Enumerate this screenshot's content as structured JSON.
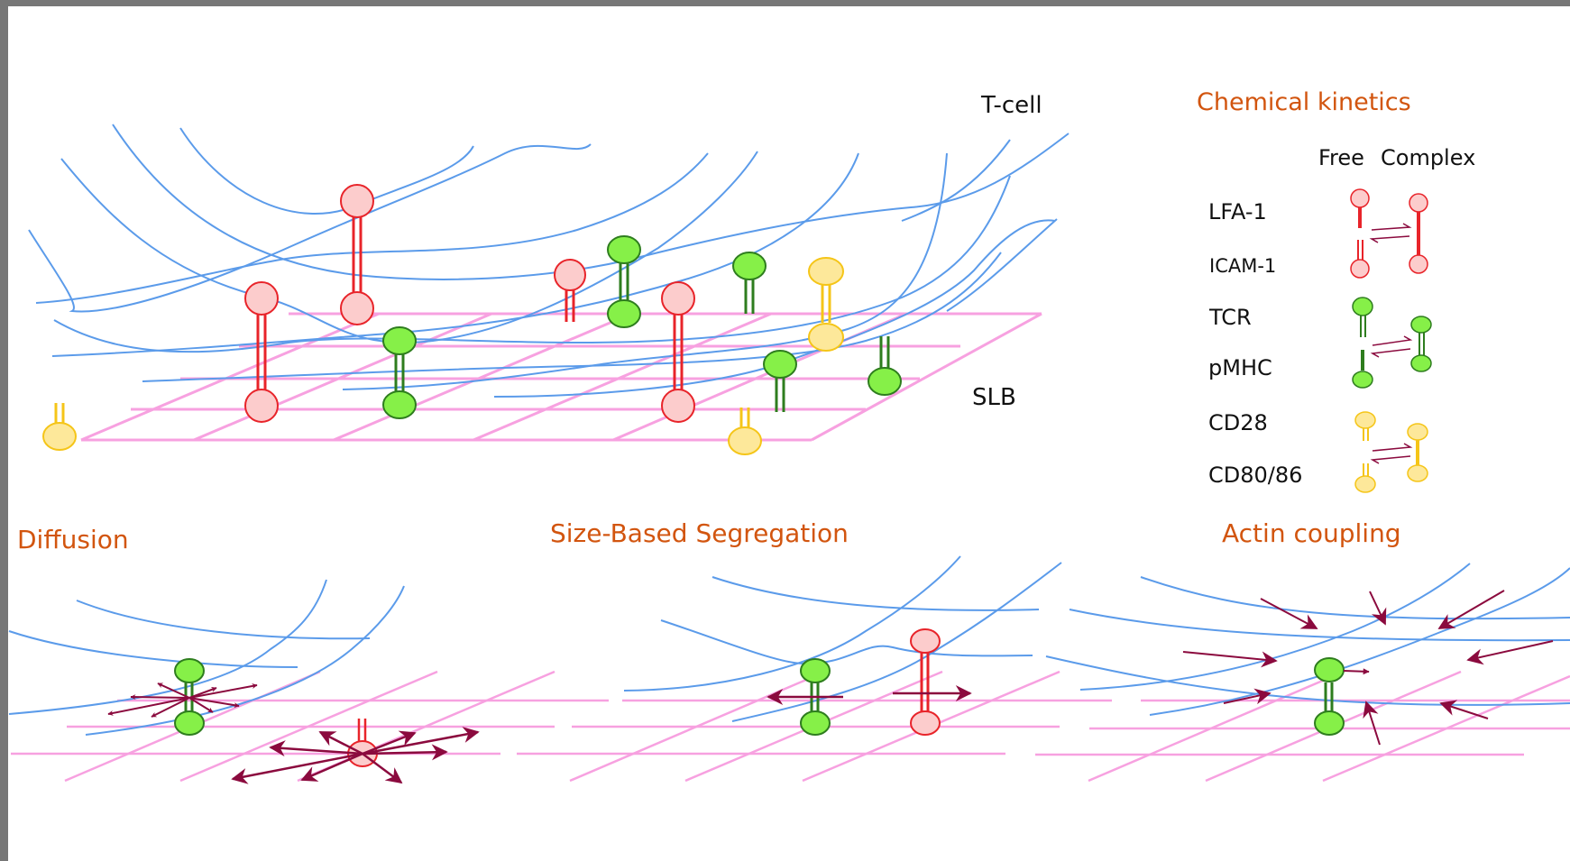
{
  "main_diagram": {
    "tcell_label": "T-cell",
    "slb_label": "SLB"
  },
  "legend": {
    "title": "Chemical kinetics",
    "col_free": "Free",
    "col_complex": "Complex",
    "rows": [
      "LFA-1",
      "ICAM-1",
      "TCR",
      "pMHC",
      "CD28",
      "CD80/86"
    ]
  },
  "panels": {
    "diffusion": "Diffusion",
    "segregation": "Size-Based Segregation",
    "actin": "Actin coupling"
  },
  "colors": {
    "actin": "#5b9bea",
    "bilayer": "#f7a1e0",
    "lfa1": "#e8242a",
    "lfa1_fill": "#fccccc",
    "tcr": "#2e7d1e",
    "tcr_fill": "#86f048",
    "cd28": "#f5c518",
    "cd28_fill": "#fde89a",
    "arrow": "#8b0a3e",
    "heading": "#d2550f"
  }
}
